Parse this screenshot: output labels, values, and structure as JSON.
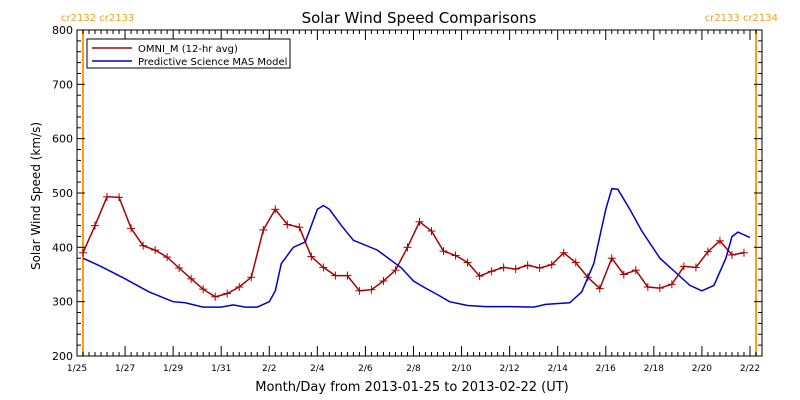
{
  "chart_data": {
    "type": "line",
    "title": "Solar Wind Speed Comparisons",
    "xlabel": "Month/Day from 2013-01-25 to 2013-02-22 (UT)",
    "ylabel": "Solar Wind Speed (km/s)",
    "xlim": [
      "2013-01-25 00:00",
      "2013-02-22 12:00"
    ],
    "ylim": [
      200,
      800
    ],
    "x_ticks": [
      {
        "label": "1/25",
        "x": "2013-01-25 00:00"
      },
      {
        "label": "1/27",
        "x": "2013-01-27 00:00"
      },
      {
        "label": "1/29",
        "x": "2013-01-29 00:00"
      },
      {
        "label": "1/31",
        "x": "2013-01-31 00:00"
      },
      {
        "label": "2/2",
        "x": "2013-02-02 00:00"
      },
      {
        "label": "2/4",
        "x": "2013-02-04 00:00"
      },
      {
        "label": "2/6",
        "x": "2013-02-06 00:00"
      },
      {
        "label": "2/8",
        "x": "2013-02-08 00:00"
      },
      {
        "label": "2/10",
        "x": "2013-02-10 00:00"
      },
      {
        "label": "2/12",
        "x": "2013-02-12 00:00"
      },
      {
        "label": "2/14",
        "x": "2013-02-14 00:00"
      },
      {
        "label": "2/16",
        "x": "2013-02-16 00:00"
      },
      {
        "label": "2/18",
        "x": "2013-02-18 00:00"
      },
      {
        "label": "2/20",
        "x": "2013-02-20 00:00"
      },
      {
        "label": "2/22",
        "x": "2013-02-22 00:00"
      }
    ],
    "y_ticks": [
      200,
      300,
      400,
      500,
      600,
      700,
      800
    ],
    "legend_position": "top-left",
    "grid": false,
    "carrington_markers": [
      {
        "label": "cr2132 cr2133",
        "x": "2013-01-25 06:00",
        "side": "left"
      },
      {
        "label": "cr2133 cr2134",
        "x": "2013-02-22 06:00",
        "side": "right"
      }
    ],
    "series": [
      {
        "name": "OMNI_M (12-hr avg)",
        "color": "#aa0000",
        "marker": "plus",
        "points": [
          [
            "2013-01-25 06:00",
            390
          ],
          [
            "2013-01-25 18:00",
            440
          ],
          [
            "2013-01-26 06:00",
            493
          ],
          [
            "2013-01-26 18:00",
            492
          ],
          [
            "2013-01-27 06:00",
            435
          ],
          [
            "2013-01-27 18:00",
            403
          ],
          [
            "2013-01-28 06:00",
            395
          ],
          [
            "2013-01-28 18:00",
            382
          ],
          [
            "2013-01-29 06:00",
            362
          ],
          [
            "2013-01-29 18:00",
            342
          ],
          [
            "2013-01-30 06:00",
            323
          ],
          [
            "2013-01-30 18:00",
            309
          ],
          [
            "2013-01-31 06:00",
            315
          ],
          [
            "2013-01-31 18:00",
            327
          ],
          [
            "2013-02-01 06:00",
            345
          ],
          [
            "2013-02-01 18:00",
            432
          ],
          [
            "2013-02-02 06:00",
            470
          ],
          [
            "2013-02-02 18:00",
            442
          ],
          [
            "2013-02-03 06:00",
            437
          ],
          [
            "2013-02-03 18:00",
            383
          ],
          [
            "2013-02-04 06:00",
            363
          ],
          [
            "2013-02-04 18:00",
            348
          ],
          [
            "2013-02-05 06:00",
            348
          ],
          [
            "2013-02-05 18:00",
            320
          ],
          [
            "2013-02-06 06:00",
            322
          ],
          [
            "2013-02-06 18:00",
            338
          ],
          [
            "2013-02-07 06:00",
            358
          ],
          [
            "2013-02-07 18:00",
            400
          ],
          [
            "2013-02-08 06:00",
            447
          ],
          [
            "2013-02-08 18:00",
            430
          ],
          [
            "2013-02-09 06:00",
            393
          ],
          [
            "2013-02-09 18:00",
            385
          ],
          [
            "2013-02-10 06:00",
            372
          ],
          [
            "2013-02-10 18:00",
            347
          ],
          [
            "2013-02-11 06:00",
            356
          ],
          [
            "2013-02-11 18:00",
            363
          ],
          [
            "2013-02-12 06:00",
            360
          ],
          [
            "2013-02-12 18:00",
            367
          ],
          [
            "2013-02-13 06:00",
            362
          ],
          [
            "2013-02-13 18:00",
            368
          ],
          [
            "2013-02-14 06:00",
            390
          ],
          [
            "2013-02-14 18:00",
            372
          ],
          [
            "2013-02-15 06:00",
            345
          ],
          [
            "2013-02-15 18:00",
            324
          ],
          [
            "2013-02-16 06:00",
            380
          ],
          [
            "2013-02-16 18:00",
            350
          ],
          [
            "2013-02-17 06:00",
            358
          ],
          [
            "2013-02-17 18:00",
            327
          ],
          [
            "2013-02-18 06:00",
            325
          ],
          [
            "2013-02-18 18:00",
            332
          ],
          [
            "2013-02-19 06:00",
            365
          ],
          [
            "2013-02-19 18:00",
            363
          ],
          [
            "2013-02-20 06:00",
            392
          ],
          [
            "2013-02-20 18:00",
            412
          ],
          [
            "2013-02-21 06:00",
            386
          ],
          [
            "2013-02-21 18:00",
            390
          ]
        ]
      },
      {
        "name": "Predictive Science MAS Model",
        "color": "#0000cc",
        "marker": "none",
        "points": [
          [
            "2013-01-25 06:00",
            380
          ],
          [
            "2013-01-26 00:00",
            365
          ],
          [
            "2013-01-27 00:00",
            342
          ],
          [
            "2013-01-28 00:00",
            318
          ],
          [
            "2013-01-29 00:00",
            300
          ],
          [
            "2013-01-29 12:00",
            298
          ],
          [
            "2013-01-30 06:00",
            290
          ],
          [
            "2013-01-31 00:00",
            290
          ],
          [
            "2013-01-31 12:00",
            294
          ],
          [
            "2013-02-01 00:00",
            290
          ],
          [
            "2013-02-01 12:00",
            290
          ],
          [
            "2013-02-02 00:00",
            300
          ],
          [
            "2013-02-02 06:00",
            320
          ],
          [
            "2013-02-02 12:00",
            370
          ],
          [
            "2013-02-03 00:00",
            400
          ],
          [
            "2013-02-03 12:00",
            410
          ],
          [
            "2013-02-04 00:00",
            470
          ],
          [
            "2013-02-04 06:00",
            477
          ],
          [
            "2013-02-04 12:00",
            470
          ],
          [
            "2013-02-05 00:00",
            440
          ],
          [
            "2013-02-05 12:00",
            413
          ],
          [
            "2013-02-06 12:00",
            395
          ],
          [
            "2013-02-07 12:00",
            362
          ],
          [
            "2013-02-08 00:00",
            338
          ],
          [
            "2013-02-08 12:00",
            325
          ],
          [
            "2013-02-09 00:00",
            313
          ],
          [
            "2013-02-09 12:00",
            300
          ],
          [
            "2013-02-10 06:00",
            293
          ],
          [
            "2013-02-11 00:00",
            291
          ],
          [
            "2013-02-12 00:00",
            291
          ],
          [
            "2013-02-13 00:00",
            290
          ],
          [
            "2013-02-13 12:00",
            295
          ],
          [
            "2013-02-14 12:00",
            298
          ],
          [
            "2013-02-15 00:00",
            318
          ],
          [
            "2013-02-15 12:00",
            370
          ],
          [
            "2013-02-16 00:00",
            470
          ],
          [
            "2013-02-16 06:00",
            508
          ],
          [
            "2013-02-16 12:00",
            507
          ],
          [
            "2013-02-17 00:00",
            470
          ],
          [
            "2013-02-17 12:00",
            430
          ],
          [
            "2013-02-18 06:00",
            380
          ],
          [
            "2013-02-19 00:00",
            350
          ],
          [
            "2013-02-19 12:00",
            330
          ],
          [
            "2013-02-20 00:00",
            320
          ],
          [
            "2013-02-20 12:00",
            330
          ],
          [
            "2013-02-21 00:00",
            380
          ],
          [
            "2013-02-21 06:00",
            420
          ],
          [
            "2013-02-21 12:00",
            428
          ],
          [
            "2013-02-22 00:00",
            418
          ]
        ]
      }
    ]
  }
}
